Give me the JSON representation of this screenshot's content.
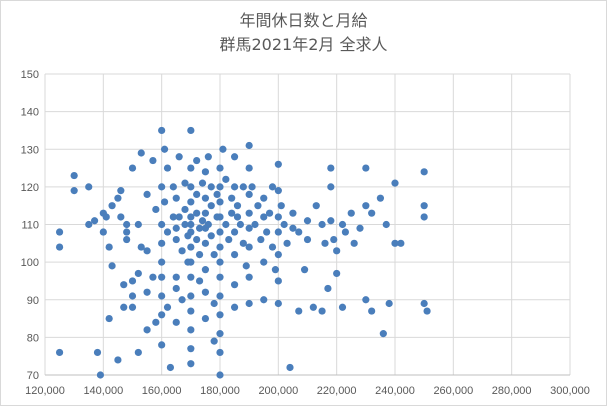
{
  "chart_data": {
    "type": "scatter",
    "title": "年間休日数と月給",
    "subtitle": "群馬2021年2月  全求人",
    "xlabel": "",
    "ylabel": "",
    "xlim": [
      120000,
      300000
    ],
    "ylim": [
      70,
      150
    ],
    "x_ticks": [
      "120,000",
      "140,000",
      "160,000",
      "180,000",
      "200,000",
      "220,000",
      "240,000",
      "260,000",
      "280,000",
      "300,000"
    ],
    "y_ticks": [
      "70",
      "80",
      "90",
      "100",
      "110",
      "120",
      "130",
      "140",
      "150"
    ],
    "grid": true,
    "legend": "none",
    "marker_color": "#4a7ebb",
    "series": [
      {
        "points": [
          [
            125000,
            104
          ],
          [
            125000,
            108
          ],
          [
            125000,
            76
          ],
          [
            130000,
            123
          ],
          [
            130000,
            119
          ],
          [
            135000,
            120
          ],
          [
            135000,
            110
          ],
          [
            137000,
            111
          ],
          [
            138000,
            76
          ],
          [
            139000,
            70
          ],
          [
            140000,
            108
          ],
          [
            140000,
            113
          ],
          [
            141000,
            112
          ],
          [
            142000,
            85
          ],
          [
            142000,
            104
          ],
          [
            143000,
            99
          ],
          [
            143000,
            115
          ],
          [
            145000,
            74
          ],
          [
            145000,
            117
          ],
          [
            146000,
            119
          ],
          [
            146000,
            112
          ],
          [
            147000,
            94
          ],
          [
            147000,
            88
          ],
          [
            148000,
            108
          ],
          [
            148000,
            110
          ],
          [
            148000,
            106
          ],
          [
            150000,
            125
          ],
          [
            150000,
            95
          ],
          [
            150000,
            91
          ],
          [
            150000,
            88
          ],
          [
            152000,
            76
          ],
          [
            152000,
            97
          ],
          [
            152000,
            110
          ],
          [
            153000,
            129
          ],
          [
            153000,
            104
          ],
          [
            155000,
            118
          ],
          [
            155000,
            103
          ],
          [
            155000,
            92
          ],
          [
            155000,
            82
          ],
          [
            157000,
            127
          ],
          [
            157000,
            96
          ],
          [
            158000,
            84
          ],
          [
            158000,
            114
          ],
          [
            160000,
            135
          ],
          [
            160000,
            120
          ],
          [
            160000,
            110
          ],
          [
            160000,
            105
          ],
          [
            160000,
            100
          ],
          [
            160000,
            96
          ],
          [
            160000,
            91
          ],
          [
            160000,
            86
          ],
          [
            160000,
            78
          ],
          [
            161000,
            130
          ],
          [
            161000,
            116
          ],
          [
            162000,
            125
          ],
          [
            162000,
            108
          ],
          [
            162000,
            88
          ],
          [
            163000,
            72
          ],
          [
            164000,
            112
          ],
          [
            164000,
            120
          ],
          [
            165000,
            117
          ],
          [
            165000,
            109
          ],
          [
            165000,
            106
          ],
          [
            165000,
            96
          ],
          [
            165000,
            93
          ],
          [
            165000,
            84
          ],
          [
            166000,
            128
          ],
          [
            166000,
            112
          ],
          [
            167000,
            103
          ],
          [
            167000,
            90
          ],
          [
            168000,
            121
          ],
          [
            168000,
            114
          ],
          [
            168000,
            110
          ],
          [
            169000,
            107
          ],
          [
            169000,
            100
          ],
          [
            170000,
            135
          ],
          [
            170000,
            125
          ],
          [
            170000,
            120
          ],
          [
            170000,
            116
          ],
          [
            170000,
            112
          ],
          [
            170000,
            110
          ],
          [
            170000,
            108
          ],
          [
            170000,
            104
          ],
          [
            170000,
            100
          ],
          [
            170000,
            96
          ],
          [
            170000,
            91
          ],
          [
            170000,
            87
          ],
          [
            170000,
            82
          ],
          [
            170000,
            77
          ],
          [
            170000,
            73
          ],
          [
            172000,
            127
          ],
          [
            172000,
            118
          ],
          [
            172000,
            113
          ],
          [
            172000,
            106
          ],
          [
            173000,
            109
          ],
          [
            173000,
            102
          ],
          [
            173000,
            95
          ],
          [
            174000,
            121
          ],
          [
            174000,
            111
          ],
          [
            175000,
            124
          ],
          [
            175000,
            117
          ],
          [
            175000,
            113
          ],
          [
            175000,
            109
          ],
          [
            175000,
            105
          ],
          [
            175000,
            98
          ],
          [
            175000,
            92
          ],
          [
            175000,
            85
          ],
          [
            176000,
            128
          ],
          [
            176000,
            110
          ],
          [
            177000,
            120
          ],
          [
            177000,
            115
          ],
          [
            177000,
            107
          ],
          [
            178000,
            102
          ],
          [
            178000,
            89
          ],
          [
            178000,
            79
          ],
          [
            179000,
            112
          ],
          [
            179000,
            118
          ],
          [
            180000,
            125
          ],
          [
            180000,
            120
          ],
          [
            180000,
            116
          ],
          [
            180000,
            112
          ],
          [
            180000,
            108
          ],
          [
            180000,
            104
          ],
          [
            180000,
            100
          ],
          [
            180000,
            96
          ],
          [
            180000,
            91
          ],
          [
            180000,
            86
          ],
          [
            180000,
            81
          ],
          [
            180000,
            76
          ],
          [
            180000,
            70
          ],
          [
            181000,
            130
          ],
          [
            182000,
            122
          ],
          [
            182000,
            110
          ],
          [
            183000,
            106
          ],
          [
            184000,
            117
          ],
          [
            184000,
            113
          ],
          [
            185000,
            128
          ],
          [
            185000,
            120
          ],
          [
            185000,
            108
          ],
          [
            185000,
            102
          ],
          [
            185000,
            94
          ],
          [
            185000,
            88
          ],
          [
            186000,
            112
          ],
          [
            186000,
            115
          ],
          [
            187000,
            110
          ],
          [
            188000,
            120
          ],
          [
            188000,
            105
          ],
          [
            189000,
            99
          ],
          [
            190000,
            131
          ],
          [
            190000,
            125
          ],
          [
            190000,
            118
          ],
          [
            190000,
            113
          ],
          [
            190000,
            109
          ],
          [
            190000,
            104
          ],
          [
            190000,
            96
          ],
          [
            190000,
            89
          ],
          [
            191000,
            120
          ],
          [
            192000,
            110
          ],
          [
            193000,
            115
          ],
          [
            194000,
            106
          ],
          [
            195000,
            117
          ],
          [
            195000,
            112
          ],
          [
            195000,
            100
          ],
          [
            195000,
            90
          ],
          [
            196000,
            108
          ],
          [
            197000,
            113
          ],
          [
            198000,
            120
          ],
          [
            198000,
            104
          ],
          [
            199000,
            98
          ],
          [
            200000,
            126
          ],
          [
            200000,
            119
          ],
          [
            200000,
            112
          ],
          [
            200000,
            108
          ],
          [
            200000,
            102
          ],
          [
            200000,
            95
          ],
          [
            200000,
            89
          ],
          [
            201000,
            115
          ],
          [
            202000,
            110
          ],
          [
            203000,
            105
          ],
          [
            204000,
            72
          ],
          [
            205000,
            113
          ],
          [
            205000,
            109
          ],
          [
            207000,
            87
          ],
          [
            207000,
            108
          ],
          [
            209000,
            98
          ],
          [
            210000,
            111
          ],
          [
            210000,
            106
          ],
          [
            212000,
            88
          ],
          [
            213000,
            115
          ],
          [
            215000,
            110
          ],
          [
            215000,
            87
          ],
          [
            216000,
            105
          ],
          [
            217000,
            93
          ],
          [
            218000,
            125
          ],
          [
            218000,
            120
          ],
          [
            218000,
            111
          ],
          [
            219000,
            106
          ],
          [
            220000,
            103
          ],
          [
            220000,
            97
          ],
          [
            222000,
            88
          ],
          [
            222000,
            110
          ],
          [
            223000,
            108
          ],
          [
            225000,
            113
          ],
          [
            226000,
            105
          ],
          [
            228000,
            109
          ],
          [
            230000,
            125
          ],
          [
            230000,
            115
          ],
          [
            230000,
            90
          ],
          [
            232000,
            87
          ],
          [
            232000,
            113
          ],
          [
            235000,
            117
          ],
          [
            236000,
            81
          ],
          [
            237000,
            110
          ],
          [
            238000,
            89
          ],
          [
            240000,
            121
          ],
          [
            240000,
            105
          ],
          [
            242000,
            105
          ],
          [
            250000,
            124
          ],
          [
            250000,
            115
          ],
          [
            250000,
            112
          ],
          [
            250000,
            89
          ],
          [
            251000,
            87
          ]
        ]
      }
    ]
  }
}
